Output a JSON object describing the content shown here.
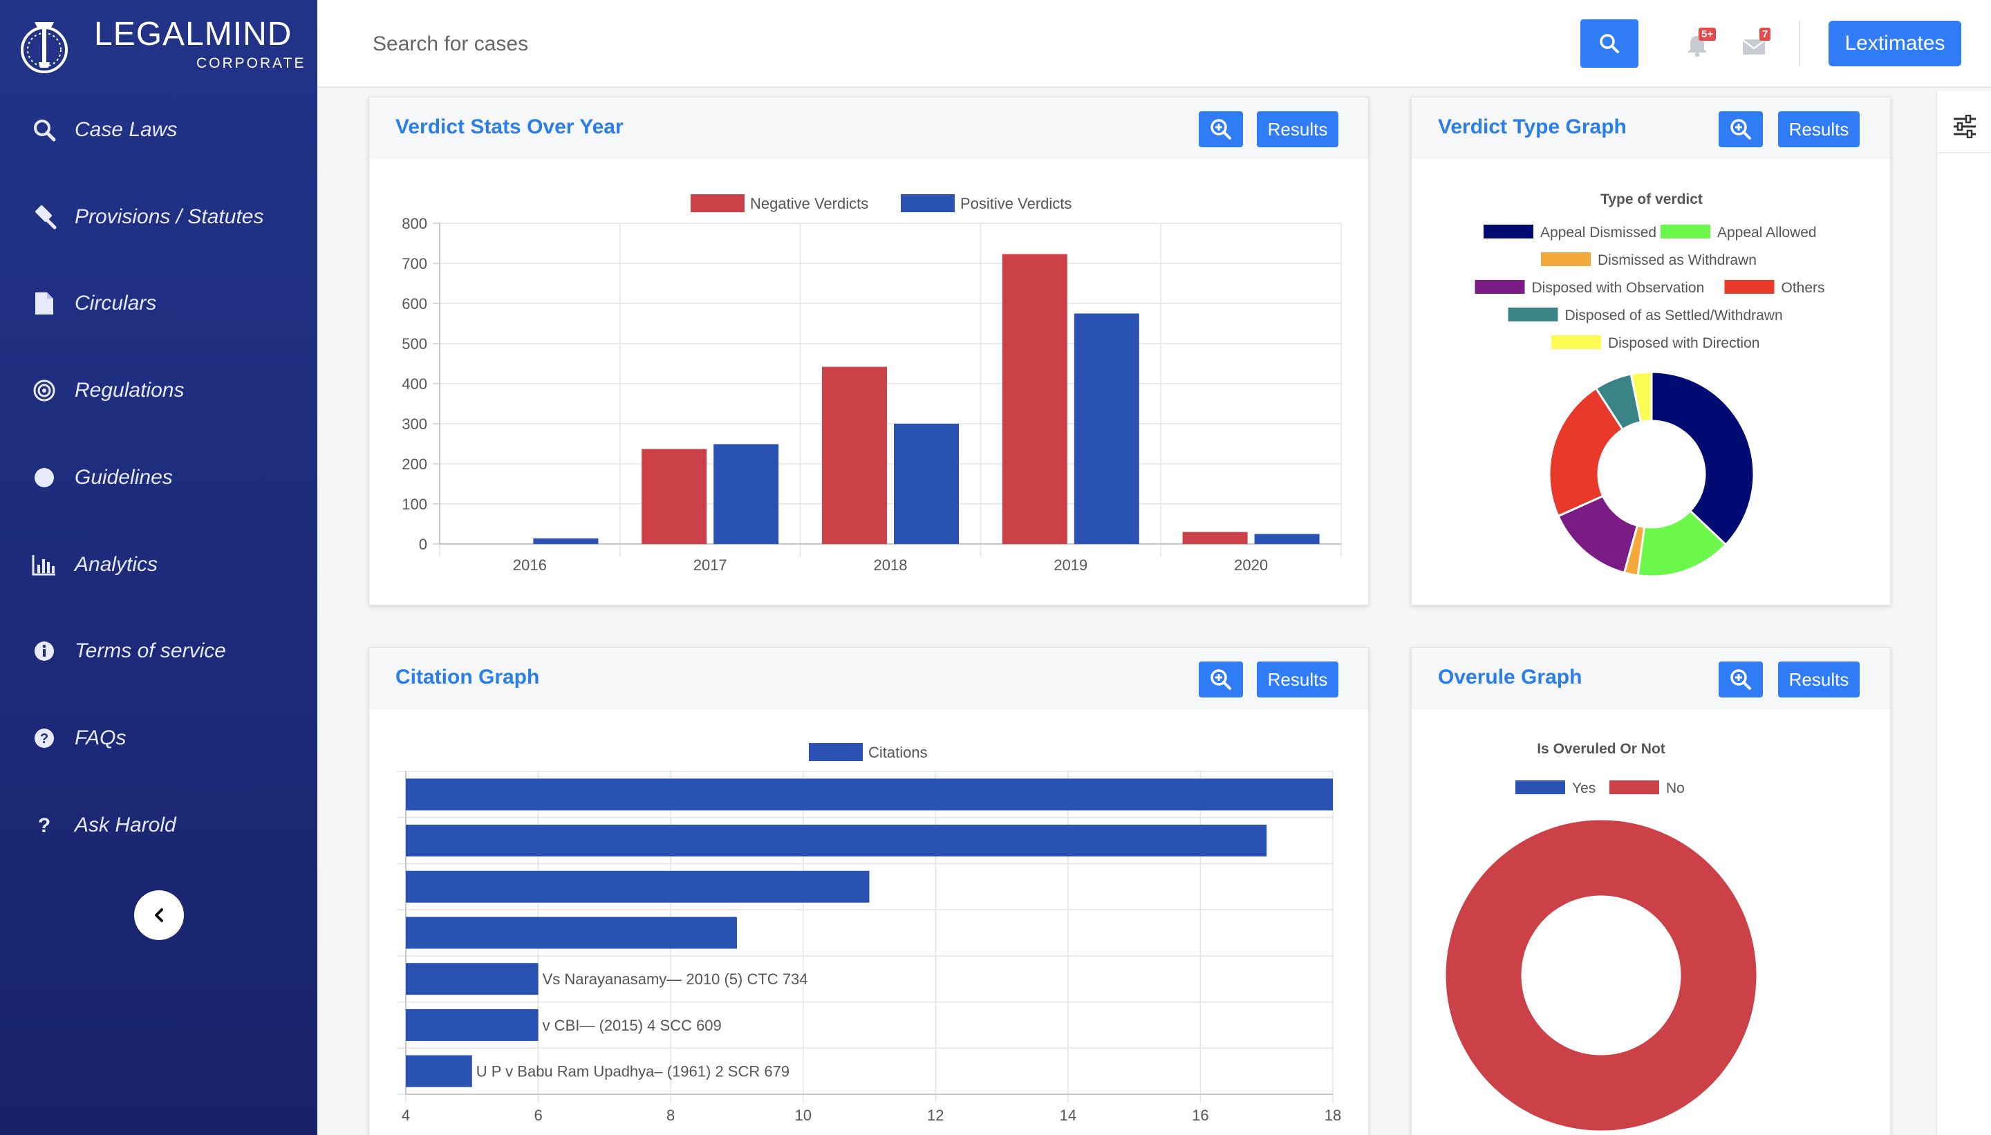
{
  "brand": {
    "name": "LEGALMIND",
    "sub": "CORPORATE"
  },
  "sidebar": {
    "items": [
      {
        "label": "Case Laws",
        "icon": "search-icon"
      },
      {
        "label": "Provisions / Statutes",
        "icon": "gavel-icon"
      },
      {
        "label": "Circulars",
        "icon": "document-icon"
      },
      {
        "label": "Regulations",
        "icon": "target-icon"
      },
      {
        "label": "Guidelines",
        "icon": "circle-icon"
      },
      {
        "label": "Analytics",
        "icon": "bar-chart-icon"
      },
      {
        "label": "Terms of service",
        "icon": "info-icon"
      },
      {
        "label": "FAQs",
        "icon": "question-circle-icon"
      },
      {
        "label": "Ask Harold",
        "icon": "question-icon"
      }
    ],
    "collapse_icon": "chevron-left-icon"
  },
  "topbar": {
    "search_placeholder": "Search for cases",
    "notifications_badge": "5+",
    "messages_badge": "7",
    "lextimates_label": "Lextimates"
  },
  "colors": {
    "accent": "#2f7cf6",
    "sidebar": "#1f2d80",
    "negative": "#cc4147",
    "positive": "#2952b3"
  },
  "cards": {
    "verdict_stats": {
      "title": "Verdict Stats Over Year",
      "results_label": "Results"
    },
    "verdict_type": {
      "title": "Verdict Type Graph",
      "results_label": "Results"
    },
    "citation": {
      "title": "Citation Graph",
      "results_label": "Results"
    },
    "overule": {
      "title": "Overule Graph",
      "results_label": "Results"
    }
  },
  "chart_data": [
    {
      "type": "bar",
      "categories": [
        "2016",
        "2017",
        "2018",
        "2019",
        "2020"
      ],
      "series": [
        {
          "name": "Negative Verdicts",
          "values": [
            0,
            237,
            442,
            723,
            30
          ],
          "color": "#cc4147"
        },
        {
          "name": "Positive Verdicts",
          "values": [
            14,
            249,
            300,
            575,
            25
          ],
          "color": "#2952b3"
        }
      ],
      "ylim": [
        0,
        800
      ],
      "yticks": [
        "0",
        "100",
        "200",
        "300",
        "400",
        "500",
        "600",
        "700",
        "800"
      ],
      "legend": "top",
      "grid": true
    },
    {
      "type": "pie",
      "title": "Type of verdict",
      "legend": "top",
      "labels": [
        "Appeal Dismissed",
        "Appeal Allowed",
        "Dismissed as Withdrawn",
        "Disposed with Observation",
        "Others",
        "Disposed of as Settled/Withdrawn",
        "Disposed with Direction"
      ],
      "values": [
        34.5,
        14,
        2,
        13,
        21,
        5.5,
        3
      ],
      "colors": [
        "#000a73",
        "#6cf84a",
        "#f6a93b",
        "#7b1b86",
        "#e8392a",
        "#3a8386",
        "#fcfb54"
      ],
      "order": [
        0,
        1,
        2,
        3,
        4,
        5,
        6
      ]
    },
    {
      "type": "bar",
      "orientation": "horizontal",
      "series": [
        {
          "name": "Citations",
          "color": "#2952b3"
        }
      ],
      "values": [
        18,
        17,
        11,
        9,
        6,
        6,
        5
      ],
      "labels": [
        "",
        "",
        "",
        "",
        "Vs Narayanasamy— 2010 (5) CTC 734",
        "v CBI— (2015) 4 SCC 609",
        "U P v Babu Ram Upadhya– (1961) 2 SCR 679"
      ],
      "xlim": [
        4,
        18
      ],
      "xticks": [
        "4",
        "6",
        "8",
        "10",
        "12",
        "14",
        "16",
        "18"
      ],
      "legend": "top",
      "grid": true
    },
    {
      "type": "pie",
      "title": "Is Overuled Or Not",
      "legend": "top",
      "labels": [
        "Yes",
        "No"
      ],
      "values": [
        0,
        100
      ],
      "colors": [
        "#2952b3",
        "#cc4147"
      ]
    }
  ]
}
